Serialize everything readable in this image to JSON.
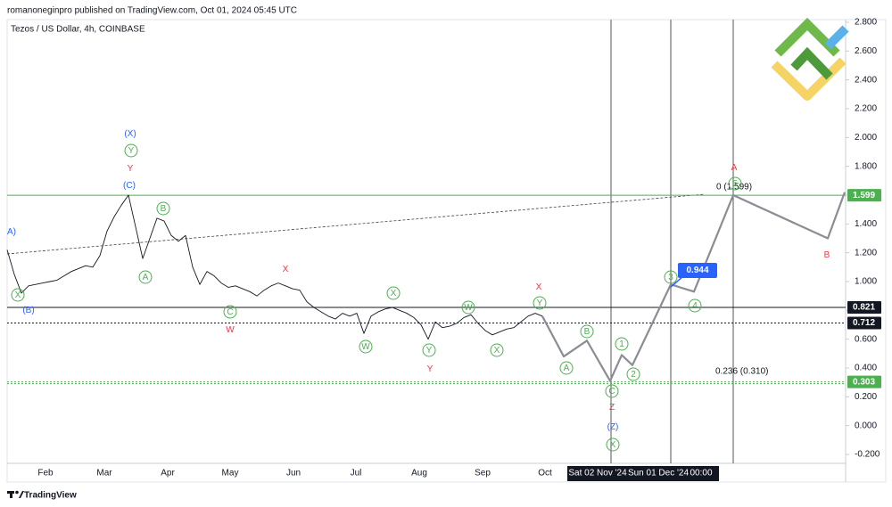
{
  "header": "romanoneginpro published on TradingView.com, Oct 01, 2024 05:45 UTC",
  "footer": "TradingView",
  "chart_data": {
    "type": "line",
    "title": "Tezos / US Dollar, 4h, COINBASE",
    "x_labels": [
      "Feb",
      "Mar",
      "Apr",
      "May",
      "Jun",
      "Jul",
      "Aug",
      "Sep",
      "Oct"
    ],
    "date_labels": [
      "Sat 02 Nov '24",
      "Sun 01 Dec '24",
      "00:00"
    ],
    "ylim": [
      -0.2,
      2.8
    ],
    "yticks": [
      {
        "value": 2.8,
        "label": "2.800"
      },
      {
        "value": 2.6,
        "label": "2.600"
      },
      {
        "value": 2.4,
        "label": "2.400"
      },
      {
        "value": 2.2,
        "label": "2.200"
      },
      {
        "value": 2.0,
        "label": "2.000"
      },
      {
        "value": 1.8,
        "label": "1.800"
      },
      {
        "value": 1.6,
        "label": "1.600"
      },
      {
        "value": 1.4,
        "label": "1.400"
      },
      {
        "value": 1.2,
        "label": "1.200"
      },
      {
        "value": 1.0,
        "label": "1.000"
      },
      {
        "value": 0.8,
        "label": "0.800"
      },
      {
        "value": 0.6,
        "label": "0.600"
      },
      {
        "value": 0.4,
        "label": "0.400"
      },
      {
        "value": 0.2,
        "label": "0.200"
      },
      {
        "value": 0.0,
        "label": "0.000"
      },
      {
        "value": -0.2,
        "label": "-0.200"
      }
    ],
    "series": [
      {
        "color": "#131722",
        "values": [
          1.22,
          1.05,
          0.92,
          0.97,
          0.98,
          0.99,
          1.0,
          1.01,
          1.04,
          1.07,
          1.09,
          1.11,
          1.1,
          1.18,
          1.35,
          1.45,
          1.53,
          1.6,
          1.38,
          1.16,
          1.3,
          1.44,
          1.42,
          1.32,
          1.28,
          1.32,
          1.1,
          0.98,
          1.07,
          1.04,
          0.99,
          0.96,
          0.97,
          0.95,
          0.93,
          0.9,
          0.94,
          0.97,
          0.99,
          0.97,
          0.95,
          0.94,
          0.86,
          0.82,
          0.79,
          0.76,
          0.74,
          0.78,
          0.76,
          0.78,
          0.64,
          0.76,
          0.79,
          0.81,
          0.82,
          0.8,
          0.78,
          0.75,
          0.7,
          0.6,
          0.72,
          0.68,
          0.69,
          0.71,
          0.75,
          0.77,
          0.71,
          0.66,
          0.63,
          0.65,
          0.67,
          0.68,
          0.72,
          0.76,
          0.78,
          0.76
        ]
      }
    ],
    "projection": {
      "color": "#8a8d93",
      "values": [
        0.76,
        0.48,
        0.59,
        0.31,
        0.49,
        0.42,
        0.98,
        0.93,
        1.6,
        1.3,
        1.62
      ]
    },
    "levels": [
      {
        "value": 1.599,
        "color": "#4caf50",
        "style": "solid"
      },
      {
        "value": 0.821,
        "color": "#131722",
        "style": "solid"
      },
      {
        "value": 0.712,
        "color": "#131722",
        "style": "dotted"
      },
      {
        "value": 0.303,
        "color": "#4caf50",
        "style": "dotted"
      }
    ],
    "fib_labels": [
      "0 (1.599)",
      "0.236 (0.310)"
    ],
    "target_label": {
      "value": 0.944,
      "color": "#2962ff"
    },
    "annotations": [
      {
        "text": "A)",
        "color": "#2962ff",
        "circled": false
      },
      {
        "text": "X",
        "color": "#4caf50",
        "circled": true
      },
      {
        "text": "(B)",
        "color": "#2962ff",
        "circled": false
      },
      {
        "text": "(X)",
        "color": "#2962ff",
        "circled": false
      },
      {
        "text": "Y",
        "color": "#4caf50",
        "circled": true
      },
      {
        "text": "Y",
        "color": "#f23645",
        "circled": false
      },
      {
        "text": "(C)",
        "color": "#2962ff",
        "circled": false
      },
      {
        "text": "B",
        "color": "#4caf50",
        "circled": true
      },
      {
        "text": "A",
        "color": "#4caf50",
        "circled": true
      },
      {
        "text": "C",
        "color": "#4caf50",
        "circled": true
      },
      {
        "text": "W",
        "color": "#f23645",
        "circled": false
      },
      {
        "text": "X",
        "color": "#f23645",
        "circled": false
      },
      {
        "text": "X",
        "color": "#4caf50",
        "circled": true
      },
      {
        "text": "W",
        "color": "#4caf50",
        "circled": true
      },
      {
        "text": "Y",
        "color": "#4caf50",
        "circled": true
      },
      {
        "text": "Y",
        "color": "#f23645",
        "circled": false
      },
      {
        "text": "W",
        "color": "#4caf50",
        "circled": true
      },
      {
        "text": "X",
        "color": "#4caf50",
        "circled": true
      },
      {
        "text": "X",
        "color": "#f23645",
        "circled": false
      },
      {
        "text": "Y",
        "color": "#4caf50",
        "circled": true
      },
      {
        "text": "A",
        "color": "#4caf50",
        "circled": true
      },
      {
        "text": "B",
        "color": "#4caf50",
        "circled": true
      },
      {
        "text": "1",
        "color": "#4caf50",
        "circled": true
      },
      {
        "text": "2",
        "color": "#4caf50",
        "circled": true
      },
      {
        "text": "C",
        "color": "#4caf50",
        "circled": true
      },
      {
        "text": "Z",
        "color": "#f23645",
        "circled": false
      },
      {
        "text": "(Z)",
        "color": "#2962ff",
        "circled": false
      },
      {
        "text": "X",
        "color": "#4caf50",
        "circled": true
      },
      {
        "text": "3",
        "color": "#4caf50",
        "circled": true
      },
      {
        "text": "4",
        "color": "#4caf50",
        "circled": true
      },
      {
        "text": "A",
        "color": "#f23645",
        "circled": false
      },
      {
        "text": "5",
        "color": "#4caf50",
        "circled": true
      },
      {
        "text": "B",
        "color": "#f23645",
        "circled": false
      }
    ]
  }
}
